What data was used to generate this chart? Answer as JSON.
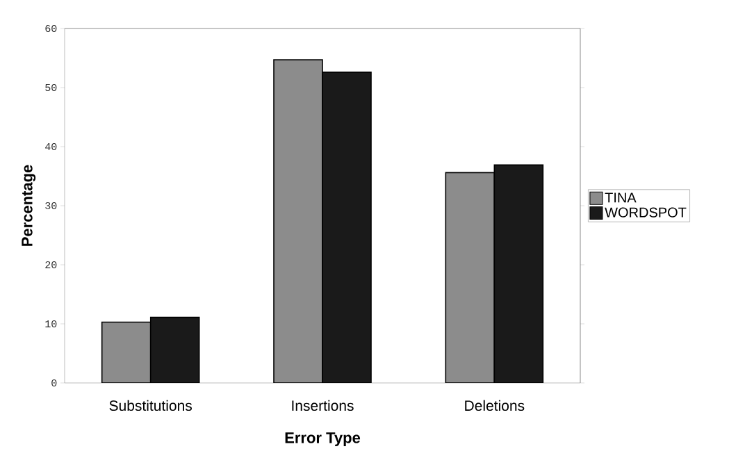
{
  "chart_data": {
    "type": "bar",
    "xlabel": "Error Type",
    "ylabel": "Percentage",
    "categories": [
      "Substitutions",
      "Insertions",
      "Deletions"
    ],
    "series": [
      {
        "name": "TINA",
        "color": "#8c8c8c",
        "values": [
          10.3,
          54.7,
          35.6
        ]
      },
      {
        "name": "WORDSPOT",
        "color": "#1a1a1a",
        "values": [
          11.1,
          52.6,
          36.9
        ]
      }
    ],
    "ylim": [
      0,
      60
    ],
    "yticks": [
      0,
      10,
      20,
      30,
      40,
      50,
      60
    ],
    "grid": false,
    "legend": "right"
  }
}
